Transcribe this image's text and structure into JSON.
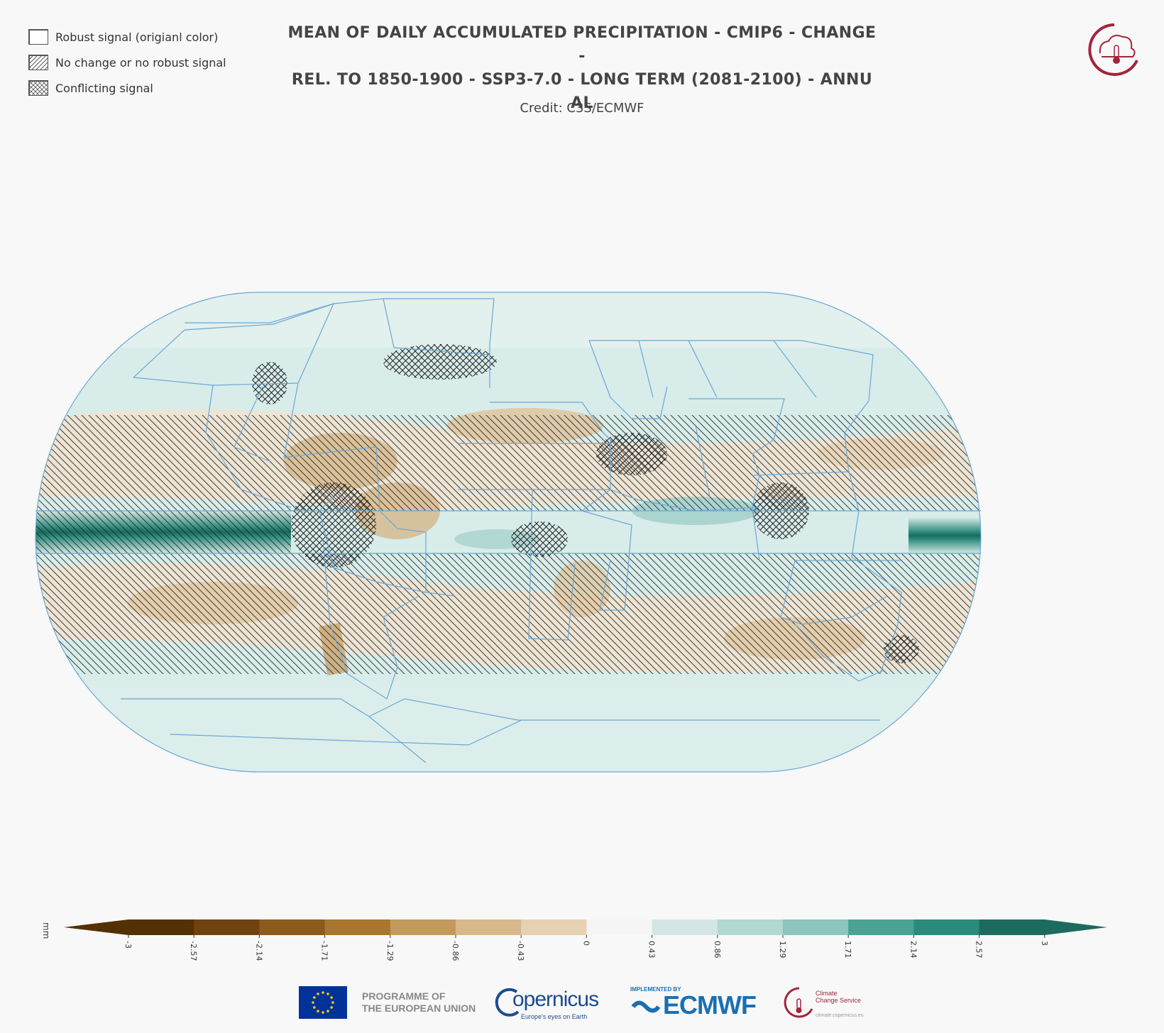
{
  "legend": [
    {
      "label": "Robust signal (origianl color)",
      "pattern": "none"
    },
    {
      "label": "No change or no robust signal",
      "pattern": "hatch"
    },
    {
      "label": "Conflicting signal",
      "pattern": "crosshatch"
    }
  ],
  "title": {
    "line1": "MEAN OF DAILY ACCUMULATED PRECIPITATION - CMIP6 - CHANGE -",
    "line2": "REL. TO 1850-1900 - SSP3-7.0 - LONG TERM (2081-2100) - ANNU",
    "line3": "AL"
  },
  "credit": "Credit: C3S/ECMWF",
  "colorbar": {
    "unit": "mm",
    "ticks": [
      "-3",
      "-2.57",
      "-2.14",
      "-1.71",
      "-1.29",
      "-0.86",
      "-0.43",
      "0",
      "0.43",
      "0.86",
      "1.29",
      "1.71",
      "2.14",
      "2.57",
      "3"
    ],
    "colors": [
      "#543005",
      "#6f4210",
      "#8b5a1d",
      "#a8762f",
      "#c49a5c",
      "#d6b88a",
      "#e6d1b3",
      "#f5f5f3",
      "#d3e6e3",
      "#b1d8d3",
      "#8cc4be",
      "#4aa294",
      "#2a8a7b",
      "#1d6b5f"
    ],
    "extend_low": "#543005",
    "extend_high": "#1d6b5f"
  },
  "footer": {
    "eu_text_line1": "PROGRAMME OF",
    "eu_text_line2": "THE EUROPEAN UNION",
    "copernicus_word": "opernicus",
    "copernicus_tag": "Europe's eyes on Earth",
    "implemented_by": "IMPLEMENTED BY",
    "ecmwf": "ECMWF",
    "ccs_line1": "Climate",
    "ccs_line2": "Change Service",
    "ccs_url": "climate.copernicus.eu"
  },
  "colors": {
    "dry": "#c49a5c",
    "wet": "#2a8a7b",
    "ocean_wet_light": "#d8ecea",
    "region_border": "#6aa8d4",
    "brand_red": "#a3243b"
  }
}
